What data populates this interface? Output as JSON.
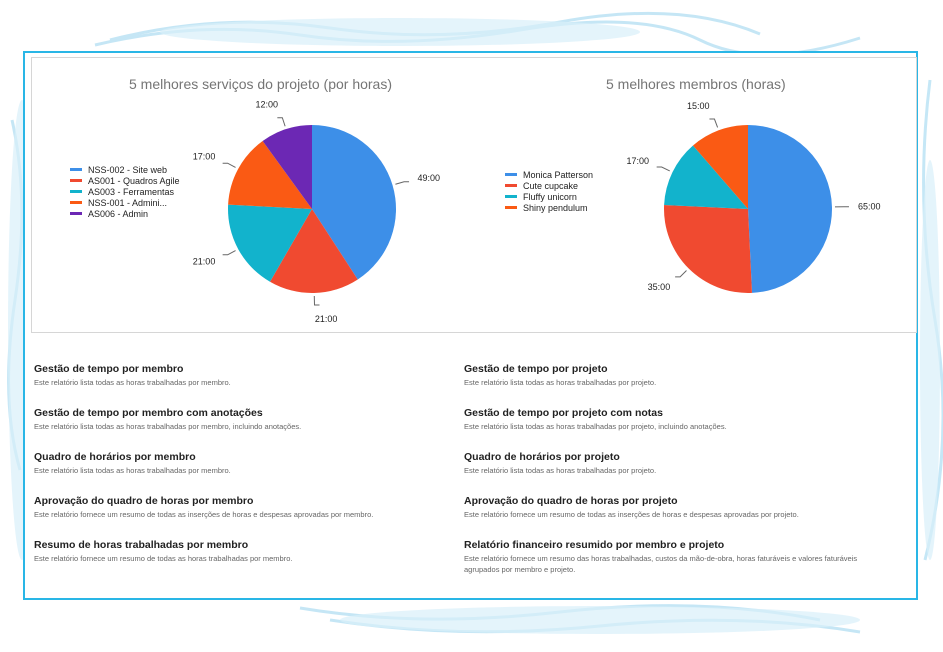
{
  "chart_data": [
    {
      "type": "pie",
      "title": "5 melhores serviços do projeto (por horas)",
      "legend": [
        "NSS-002 - Site web",
        "AS001 - Quadros Agile",
        "AS003 - Ferramentas",
        "NSS-001 - Admini...",
        "AS006 - Admin"
      ],
      "values": [
        49,
        21,
        21,
        17,
        12
      ],
      "labels": [
        "49:00",
        "21:00",
        "21:00",
        "17:00",
        "12:00"
      ],
      "colors": [
        "#3d8fe8",
        "#f04a30",
        "#12b3cc",
        "#fa5a14",
        "#6c28b4"
      ]
    },
    {
      "type": "pie",
      "title": "5 melhores membros (horas)",
      "legend": [
        "Monica Patterson",
        "Cute cupcake",
        "Fluffy unicorn",
        "Shiny pendulum"
      ],
      "values": [
        65,
        35,
        17,
        15
      ],
      "labels": [
        "65:00",
        "35:00",
        "17:00",
        "15:00"
      ],
      "colors": [
        "#3d8fe8",
        "#f04a30",
        "#12b3cc",
        "#fa5a14"
      ]
    }
  ],
  "reports": [
    {
      "title": "Gestão de tempo por membro",
      "desc": "Este relatório lista todas as horas trabalhadas por membro."
    },
    {
      "title": "Gestão de tempo por projeto",
      "desc": "Este relatório lista todas as horas trabalhadas por projeto."
    },
    {
      "title": "Gestão de tempo por membro com anotações",
      "desc": "Este relatório lista todas as horas trabalhadas por membro, incluindo anotações."
    },
    {
      "title": "Gestão de tempo por projeto com notas",
      "desc": "Este relatório lista todas as horas trabalhadas por projeto, incluindo anotações."
    },
    {
      "title": "Quadro de horários por membro",
      "desc": "Este relatório lista todas as horas trabalhadas por membro."
    },
    {
      "title": "Quadro de horários por projeto",
      "desc": "Este relatório lista todas as horas trabalhadas por projeto."
    },
    {
      "title": "Aprovação do quadro de horas por membro",
      "desc": "Este relatório fornece um resumo de todas as inserções de horas e despesas aprovadas por membro."
    },
    {
      "title": "Aprovação do quadro de horas por projeto",
      "desc": "Este relatório fornece um resumo de todas as inserções de horas e despesas aprovadas por projeto."
    },
    {
      "title": "Resumo de horas trabalhadas por membro",
      "desc": "Este relatório fornece um resumo de todas as horas trabalhadas por membro."
    },
    {
      "title": "Relatório financeiro resumido por membro e projeto",
      "desc": "Este relatório fornece um resumo das horas trabalhadas, custos da mão-de-obra, horas faturáveis e valores faturáveis agrupados por membro e projeto."
    }
  ]
}
